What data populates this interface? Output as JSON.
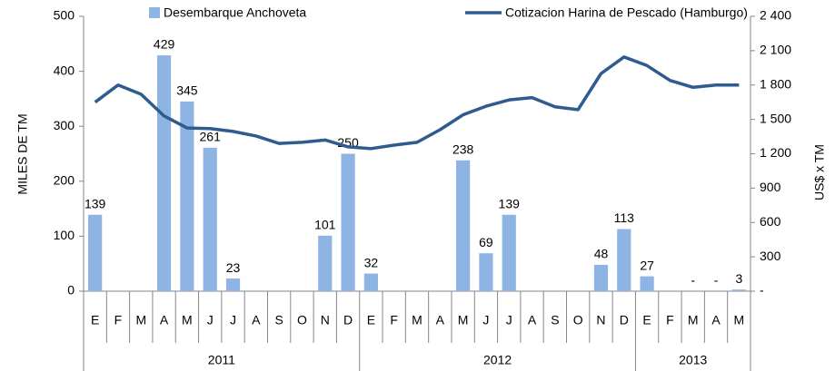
{
  "chart_data": {
    "type": "bar_line",
    "category_groups": [
      {
        "label": "2011",
        "categories": [
          "E",
          "F",
          "M",
          "A",
          "M",
          "J",
          "J",
          "A",
          "S",
          "O",
          "N",
          "D"
        ]
      },
      {
        "label": "2012",
        "categories": [
          "E",
          "F",
          "M",
          "A",
          "M",
          "J",
          "J",
          "A",
          "S",
          "O",
          "N",
          "D"
        ]
      },
      {
        "label": "2013",
        "categories": [
          "E",
          "F",
          "M",
          "A",
          "M"
        ]
      }
    ],
    "ylabel": "MILES DE TM",
    "y2label": "US$ x TM",
    "ylim": [
      0,
      500
    ],
    "yticks": [
      0,
      100,
      200,
      300,
      400,
      500
    ],
    "y2lim": [
      0,
      2400
    ],
    "y2ticks": [
      {
        "value": 0,
        "label": "-"
      },
      300,
      600,
      900,
      {
        "value": 1200,
        "label": "1 200"
      },
      {
        "value": 1500,
        "label": "1 500"
      },
      {
        "value": 1800,
        "label": "1 800"
      },
      {
        "value": 2100,
        "label": "2 100"
      },
      {
        "value": 2400,
        "label": "2 400"
      }
    ],
    "series": [
      {
        "name": "Desembarque Anchoveta",
        "kind": "bar",
        "color": "#8eb4e3",
        "values": [
          139,
          null,
          null,
          429,
          345,
          261,
          23,
          null,
          null,
          null,
          101,
          250,
          32,
          null,
          null,
          null,
          238,
          69,
          139,
          null,
          null,
          null,
          48,
          113,
          27,
          null,
          0,
          0,
          3
        ],
        "value_labels": [
          "139",
          null,
          null,
          "429",
          "345",
          "261",
          "23",
          null,
          null,
          null,
          "101",
          "250",
          "32",
          null,
          null,
          null,
          "238",
          "69",
          "139",
          null,
          null,
          null,
          "48",
          "113",
          "27",
          null,
          "-",
          "-",
          "3"
        ]
      },
      {
        "name": "Cotizacion Harina de Pescado (Hamburgo)",
        "kind": "line",
        "axis": "y2",
        "color": "#2f5b8f",
        "values": [
          1650,
          1800,
          1720,
          1530,
          1425,
          1420,
          1395,
          1355,
          1290,
          1300,
          1320,
          1260,
          1245,
          1275,
          1300,
          1410,
          1540,
          1615,
          1670,
          1690,
          1610,
          1585,
          1900,
          2045,
          1970,
          1840,
          1780,
          1800,
          1800
        ]
      }
    ]
  }
}
